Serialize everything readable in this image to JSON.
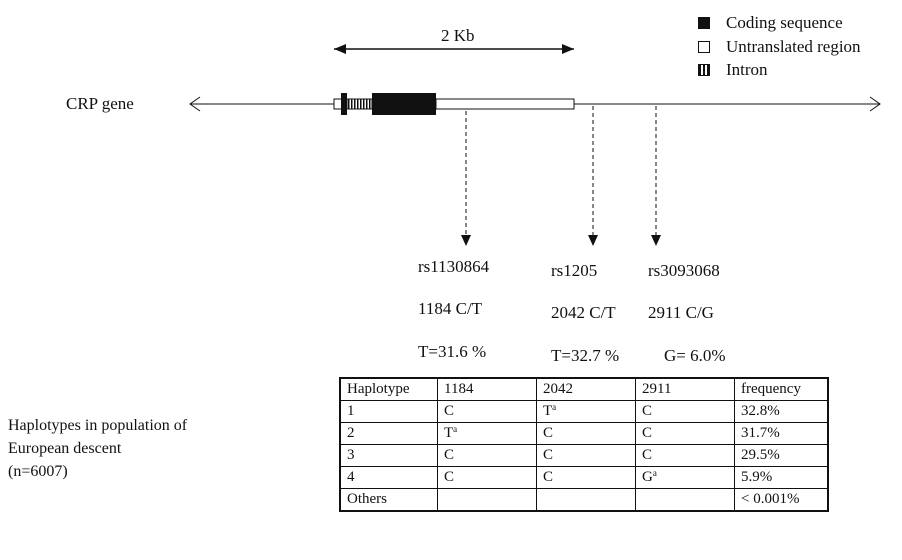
{
  "scale_label": "2 Kb",
  "gene_label": "CRP gene",
  "legend": {
    "items": [
      {
        "label": "Coding sequence",
        "icon": "filled-square"
      },
      {
        "label": "Untranslated region",
        "icon": "empty-square"
      },
      {
        "label": "Intron",
        "icon": "striped-square"
      }
    ]
  },
  "snps": [
    {
      "id": "rs1130864",
      "position": "1184 C/T",
      "freq": "T=31.6 %"
    },
    {
      "id": "rs1205",
      "position": "2042 C/T",
      "freq": "T=32.7 %"
    },
    {
      "id": "rs3093068",
      "position": "2911 C/G",
      "freq": "G= 6.0%"
    }
  ],
  "population_label": {
    "line1": "Haplotypes in population of",
    "line2": "European descent",
    "line3": "(n=6007)"
  },
  "table": {
    "headers": [
      "Haplotype",
      "1184",
      "2042",
      "2911",
      "frequency"
    ],
    "rows": [
      {
        "hap": "1",
        "a": "C",
        "b": "T",
        "b_sup": "a",
        "c": "C",
        "freq": "32.8%"
      },
      {
        "hap": "2",
        "a": "T",
        "a_sup": "a",
        "b": "C",
        "c": "C",
        "freq": "31.7%"
      },
      {
        "hap": "3",
        "a": "C",
        "b": "C",
        "c": "C",
        "freq": "29.5%"
      },
      {
        "hap": "4",
        "a": "C",
        "b": "C",
        "c": "G",
        "c_sup": "a",
        "freq": "5.9%"
      },
      {
        "hap": "Others",
        "a": "",
        "b": "",
        "c": "",
        "freq": "< 0.001%"
      }
    ]
  }
}
